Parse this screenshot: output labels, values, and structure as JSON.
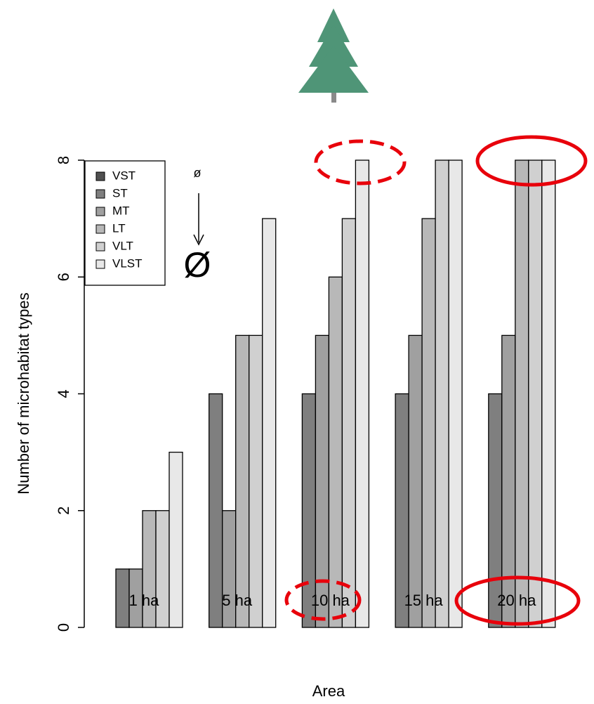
{
  "chart_data": {
    "type": "bar",
    "categories": [
      "1 ha",
      "5 ha",
      "10 ha",
      "15 ha",
      "20 ha"
    ],
    "series": [
      {
        "name": "VST",
        "color": "#505050",
        "values": [
          0,
          0,
          0,
          0,
          0
        ]
      },
      {
        "name": "ST",
        "color": "#7f7f7f",
        "values": [
          1,
          4,
          4,
          4,
          4
        ]
      },
      {
        "name": "MT",
        "color": "#a0a0a0",
        "values": [
          1,
          2,
          5,
          5,
          5
        ]
      },
      {
        "name": "LT",
        "color": "#b8b8b8",
        "values": [
          2,
          5,
          6,
          7,
          8
        ]
      },
      {
        "name": "VLT",
        "color": "#d0d0d0",
        "values": [
          2,
          5,
          7,
          8,
          8
        ]
      },
      {
        "name": "VLST",
        "color": "#e8e8e8",
        "values": [
          3,
          7,
          8,
          8,
          8
        ]
      }
    ],
    "xlabel": "Area",
    "ylabel": "Number of microhabitat types",
    "ylim": [
      0,
      8
    ],
    "yticks": [
      0,
      2,
      4,
      6,
      8
    ],
    "legend": "top-left",
    "annotations": [
      "ø",
      "Ø"
    ]
  }
}
